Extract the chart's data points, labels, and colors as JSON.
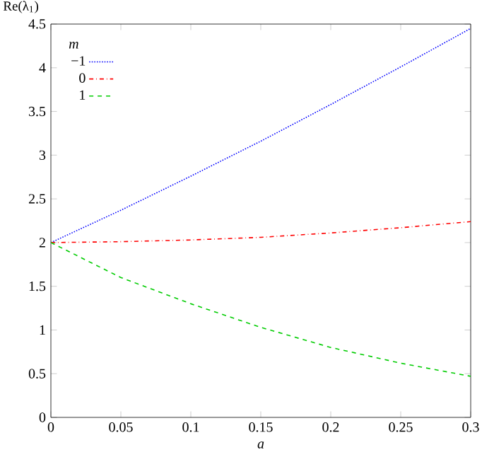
{
  "chart_data": {
    "type": "line",
    "xlabel": "a",
    "ylabel": "Re(λ$_{1}$)",
    "legend_title": "m",
    "x": [
      0,
      0.05,
      0.1,
      0.15,
      0.2,
      0.25,
      0.3
    ],
    "series": [
      {
        "name": "−1",
        "color": "#0000ff",
        "line_style": "dotted",
        "values": [
          2,
          2.37,
          2.76,
          3.16,
          3.58,
          4.01,
          4.45
        ]
      },
      {
        "name": "0",
        "color": "#ff0000",
        "line_style": "dashdot",
        "values": [
          2,
          2.01,
          2.03,
          2.06,
          2.11,
          2.17,
          2.24
        ]
      },
      {
        "name": "1",
        "color": "#00cc00",
        "line_style": "dashed",
        "values": [
          2,
          1.6,
          1.3,
          1.03,
          0.8,
          0.62,
          0.47
        ]
      }
    ],
    "xlim": [
      0,
      0.3
    ],
    "xticks": [
      0,
      0.05,
      0.1,
      0.15,
      0.2,
      0.25,
      0.3
    ],
    "ylim": [
      0,
      4.5
    ],
    "yticks": [
      0,
      0.5,
      1,
      1.5,
      2,
      2.5,
      3,
      3.5,
      4,
      4.5
    ],
    "legend": "top left",
    "grid": false,
    "marker": "none"
  }
}
